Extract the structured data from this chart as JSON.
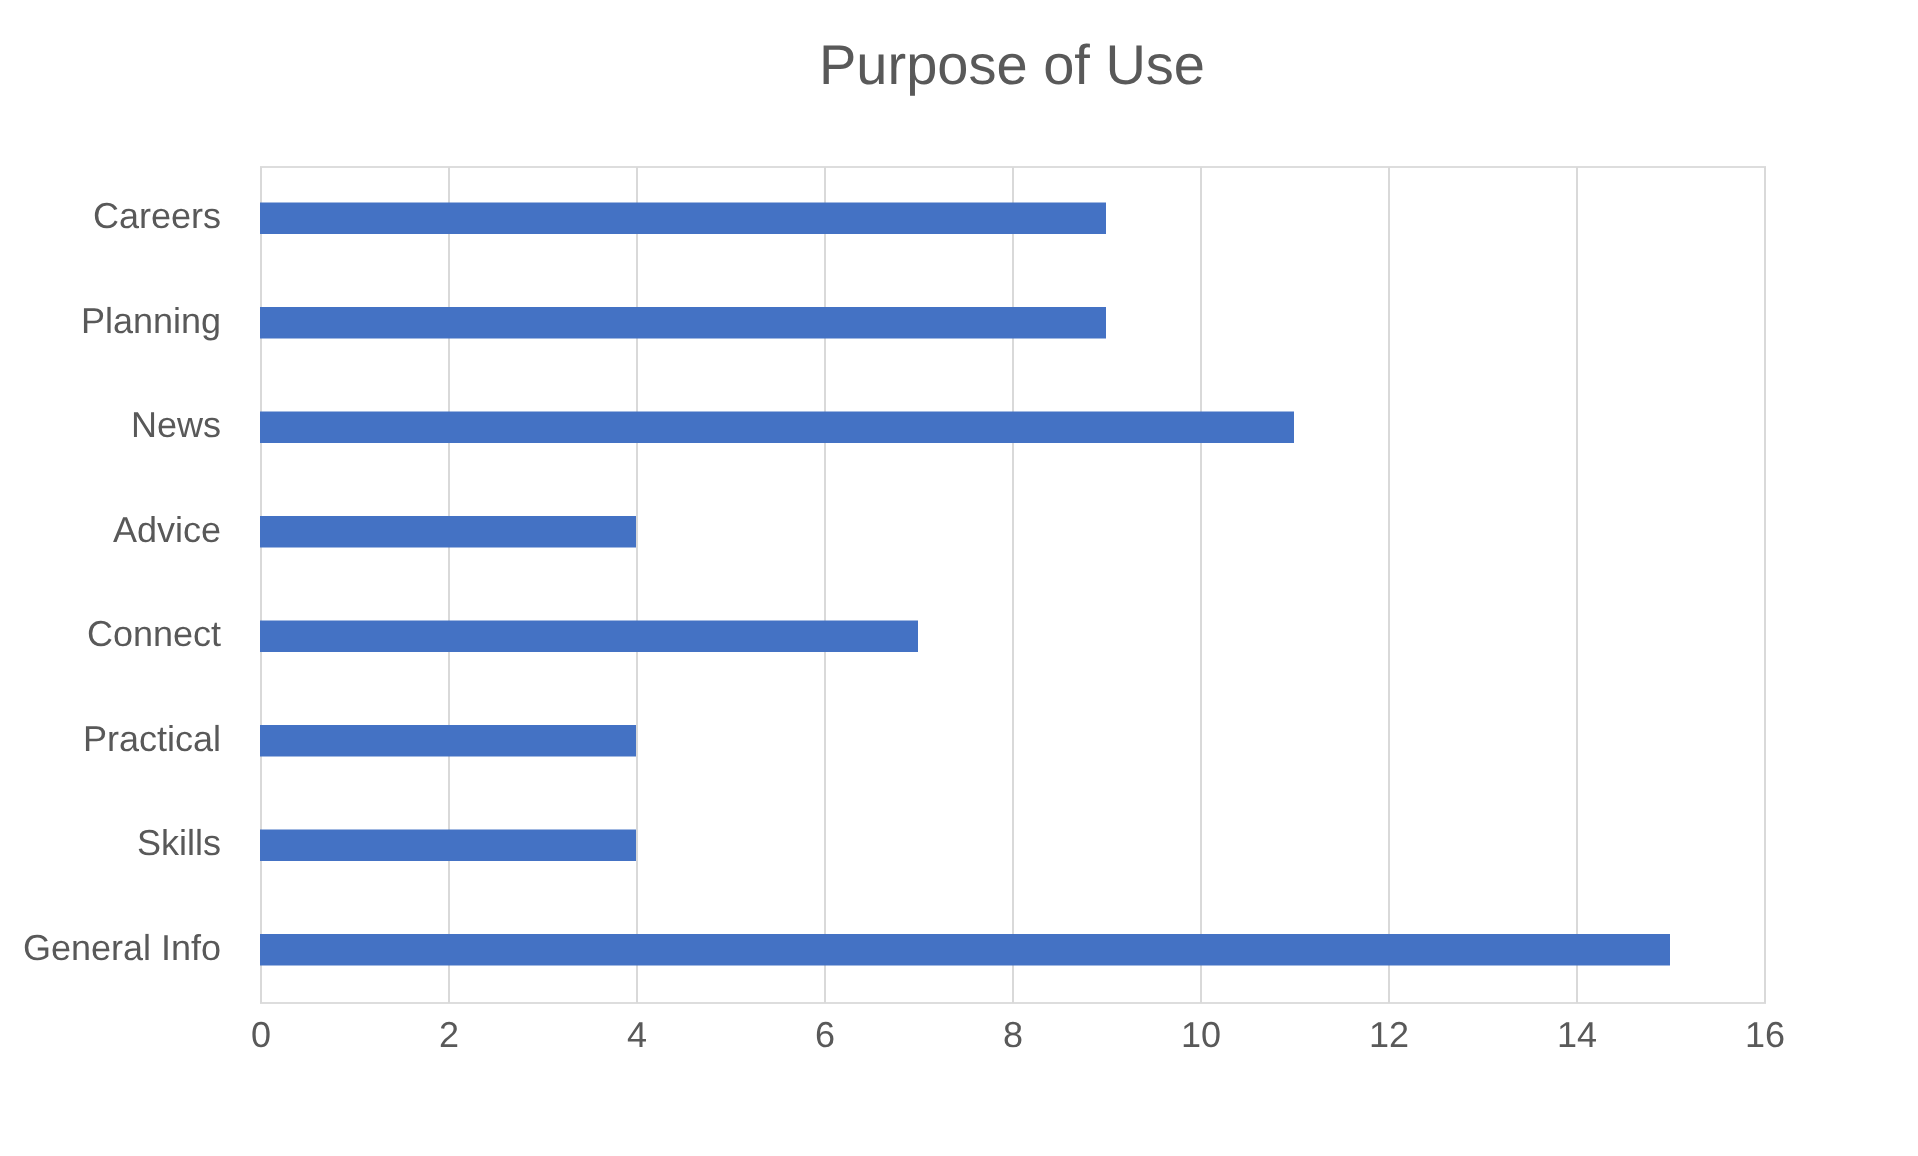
{
  "chart_data": {
    "type": "bar",
    "orientation": "horizontal",
    "title": "Purpose of Use",
    "categories": [
      "Careers",
      "Planning",
      "News",
      "Advice",
      "Connect",
      "Practical",
      "Skills",
      "General Info"
    ],
    "values": [
      9,
      9,
      11,
      4,
      7,
      4,
      4,
      15
    ],
    "color": "#4472c4",
    "xlim": [
      0,
      16
    ],
    "xticks": [
      0,
      2,
      4,
      6,
      8,
      10,
      12,
      14,
      16
    ],
    "grid": "x"
  }
}
